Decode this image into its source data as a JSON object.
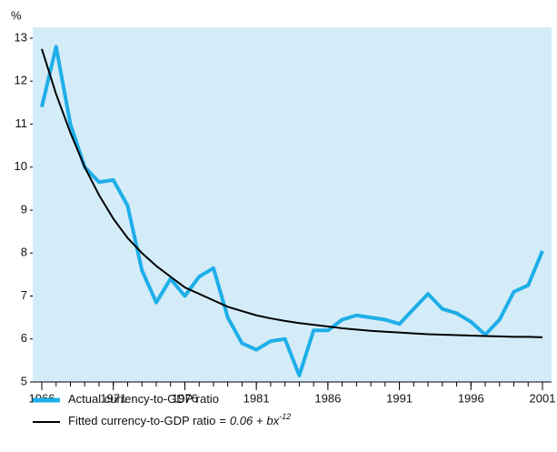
{
  "chart_data": {
    "type": "line",
    "y_unit": "%",
    "x": [
      1966,
      1967,
      1968,
      1969,
      1970,
      1971,
      1972,
      1973,
      1974,
      1975,
      1976,
      1977,
      1978,
      1979,
      1980,
      1981,
      1982,
      1983,
      1984,
      1985,
      1986,
      1987,
      1988,
      1989,
      1990,
      1991,
      1992,
      1993,
      1994,
      1995,
      1996,
      1997,
      1998,
      1999,
      2000,
      2001
    ],
    "series": [
      {
        "name": "Actual currency-to-GDP ratio",
        "color": "#1eaee8",
        "values": [
          11.4,
          12.8,
          11.0,
          10.0,
          9.65,
          9.7,
          9.1,
          7.6,
          6.85,
          7.4,
          7.0,
          7.45,
          7.65,
          6.5,
          5.9,
          5.75,
          5.95,
          6.0,
          5.15,
          6.2,
          6.2,
          6.45,
          6.55,
          6.5,
          6.45,
          6.35,
          6.7,
          7.05,
          6.7,
          6.6,
          6.4,
          6.1,
          6.45,
          7.1,
          7.25,
          8.05
        ]
      },
      {
        "name": "Fitted currency-to-GDP ratio",
        "color": "#000000",
        "formula": {
          "equals": "=",
          "constant": "0.06 +",
          "term": "bx",
          "exponent": "-12"
        },
        "values": [
          12.75,
          11.7,
          10.8,
          10.0,
          9.35,
          8.8,
          8.35,
          8.0,
          7.7,
          7.45,
          7.2,
          7.05,
          6.9,
          6.75,
          6.65,
          6.55,
          6.48,
          6.42,
          6.37,
          6.33,
          6.29,
          6.25,
          6.22,
          6.19,
          6.17,
          6.15,
          6.13,
          6.11,
          6.1,
          6.09,
          6.08,
          6.07,
          6.06,
          6.05,
          6.05,
          6.04
        ]
      }
    ],
    "xlim": [
      1966,
      2001
    ],
    "xticks": [
      1966,
      1971,
      1976,
      1981,
      1986,
      1991,
      1996,
      2001
    ],
    "ylim": [
      5,
      13
    ],
    "yticks": [
      5,
      6,
      7,
      8,
      9,
      10,
      11,
      12,
      13
    ],
    "background": "#d3ecf8"
  }
}
